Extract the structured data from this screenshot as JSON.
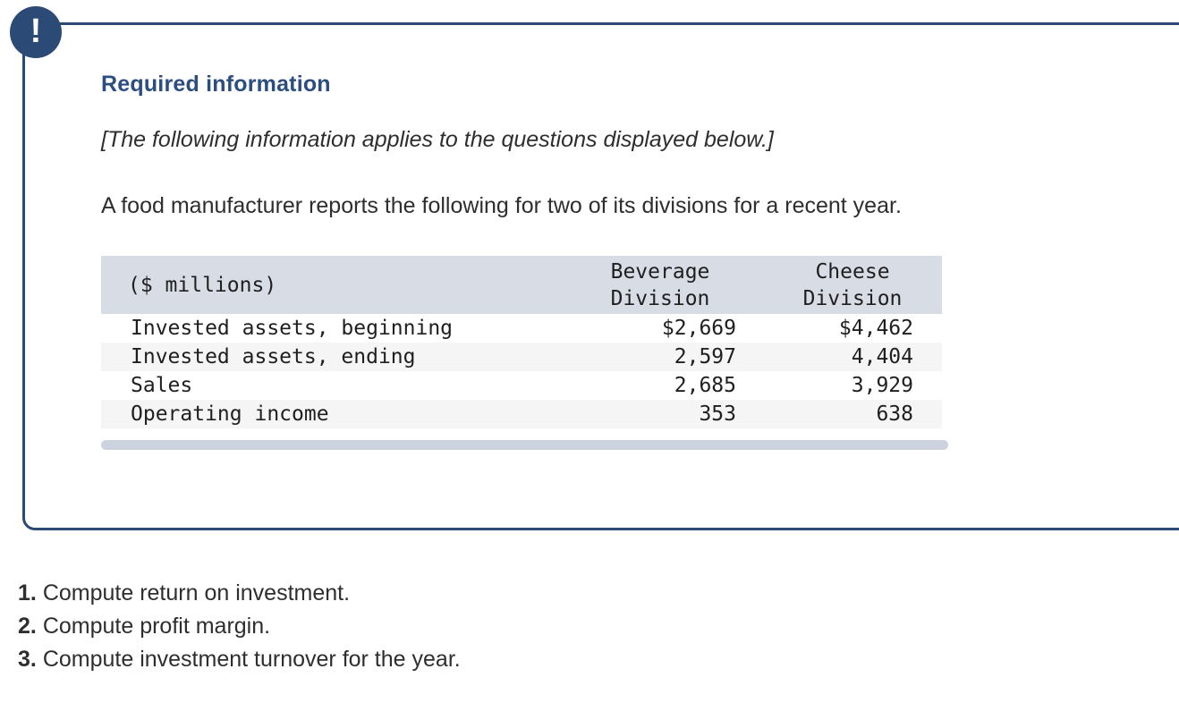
{
  "callout": {
    "icon": "!",
    "title": "Required information",
    "notice": "[The following information applies to the questions displayed below.]",
    "intro": "A food manufacturer reports the following for two of its divisions for a recent year."
  },
  "table": {
    "unit_label": "($ millions)",
    "col_headers": [
      {
        "line1": "Beverage",
        "line2": "Division"
      },
      {
        "line1": "Cheese",
        "line2": "Division"
      }
    ],
    "rows": [
      {
        "label": "Invested assets, beginning",
        "cells": [
          "$2,669",
          "$4,462"
        ]
      },
      {
        "label": "Invested assets, ending",
        "cells": [
          "2,597",
          "4,404"
        ]
      },
      {
        "label": "Sales",
        "cells": [
          "2,685",
          "3,929"
        ]
      },
      {
        "label": "Operating income",
        "cells": [
          "353",
          "638"
        ]
      }
    ]
  },
  "questions": [
    {
      "number": "1.",
      "text": "Compute return on investment."
    },
    {
      "number": "2.",
      "text": "Compute profit margin."
    },
    {
      "number": "3.",
      "text": "Compute investment turnover for the year."
    }
  ],
  "colors": {
    "accent_navy": "#2b4a75",
    "title_blue": "#2b4d80",
    "table_header_bg": "#d7dce5",
    "row_stripe_bg": "#f5f5f6",
    "scrollbar_bg": "#ccd2de",
    "body_text": "#2e2e2e"
  }
}
